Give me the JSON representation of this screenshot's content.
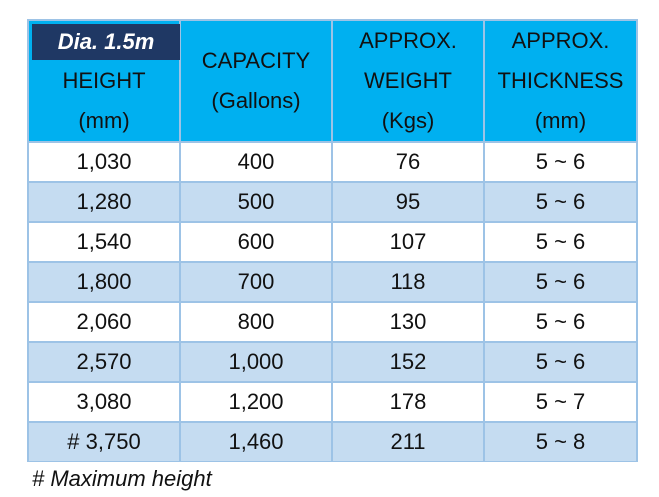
{
  "table": {
    "badge": "Dia. 1.5m",
    "header": [
      [
        "HEIGHT",
        "(mm)"
      ],
      [
        "CAPACITY",
        "(Gallons)"
      ],
      [
        "APPROX.",
        "WEIGHT",
        "(Kgs)"
      ],
      [
        "APPROX.",
        "THICKNESS",
        "(mm)"
      ]
    ],
    "rows": [
      [
        "1,030",
        "400",
        "76",
        "5 ~ 6"
      ],
      [
        "1,280",
        "500",
        "95",
        "5 ~ 6"
      ],
      [
        "1,540",
        "600",
        "107",
        "5 ~ 6"
      ],
      [
        "1,800",
        "700",
        "118",
        "5 ~ 6"
      ],
      [
        "2,060",
        "800",
        "130",
        "5 ~ 6"
      ],
      [
        "2,570",
        "1,000",
        "152",
        "5 ~ 6"
      ],
      [
        "3,080",
        "1,200",
        "178",
        "5 ~ 7"
      ],
      [
        "# 3,750",
        "1,460",
        "211",
        "5 ~ 8"
      ]
    ]
  },
  "footnote": "# Maximum height"
}
